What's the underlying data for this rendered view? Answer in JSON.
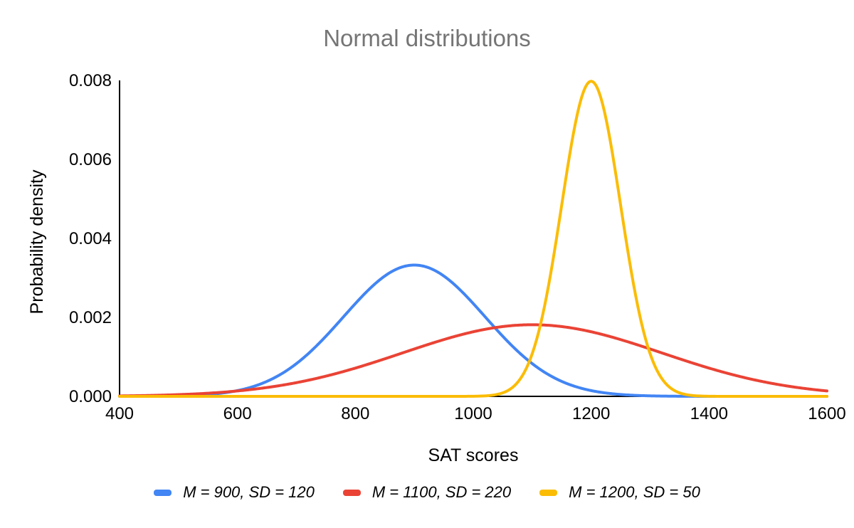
{
  "chart_data": {
    "type": "line",
    "title": "Normal distributions",
    "xlabel": "SAT scores",
    "ylabel": "Probability density",
    "xlim": [
      400,
      1600
    ],
    "ylim": [
      0,
      0.008
    ],
    "x_ticks": [
      400,
      600,
      800,
      1000,
      1200,
      1400,
      1600
    ],
    "y_ticks": [
      0,
      0.002,
      0.004,
      0.006,
      0.008
    ],
    "y_tick_labels": [
      "0.000",
      "0.002",
      "0.004",
      "0.006",
      "0.008"
    ],
    "grid": false,
    "legend_position": "bottom",
    "series": [
      {
        "name": "M = 900, SD = 120",
        "distribution": "normal",
        "mean": 900,
        "sd": 120,
        "color": "#4285F4",
        "peak_density": 0.00332
      },
      {
        "name": "M = 1100, SD = 220",
        "distribution": "normal",
        "mean": 1100,
        "sd": 220,
        "color": "#EA4335",
        "peak_density": 0.00181
      },
      {
        "name": "M = 1200, SD = 50",
        "distribution": "normal",
        "mean": 1200,
        "sd": 50,
        "color": "#FBBC04",
        "peak_density": 0.00798
      }
    ]
  },
  "colors": {
    "title_text": "#757575",
    "axis_line": "#000000",
    "tick_text": "#000000",
    "background": "#ffffff"
  }
}
